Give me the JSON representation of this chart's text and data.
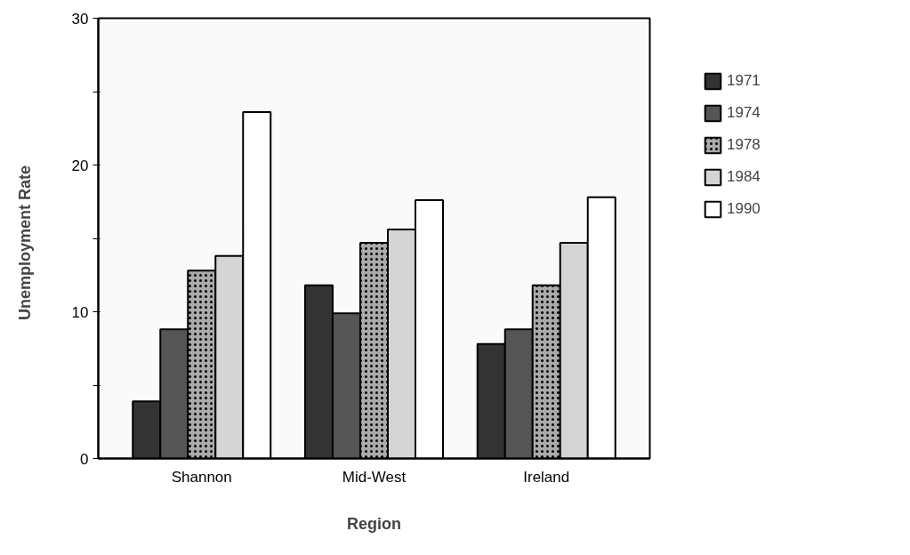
{
  "chart_data": {
    "type": "bar",
    "xlabel": "Region",
    "ylabel": "Unemployment   Rate",
    "categories": [
      "Shannon",
      "Mid-West",
      "Ireland"
    ],
    "series": [
      {
        "name": "1971",
        "color": "#333333",
        "values": [
          3.9,
          11.8,
          7.8
        ]
      },
      {
        "name": "1974",
        "color": "#555555",
        "values": [
          8.8,
          9.9,
          8.8
        ]
      },
      {
        "name": "1978",
        "color": "#aaaaaa",
        "values": [
          12.8,
          14.7,
          11.8
        ]
      },
      {
        "name": "1984",
        "color": "#d4d4d4",
        "values": [
          13.8,
          15.6,
          14.7
        ]
      },
      {
        "name": "1990",
        "color": "#ffffff",
        "values": [
          23.6,
          17.6,
          17.8
        ]
      }
    ],
    "ylim": [
      0,
      30
    ],
    "yticks": [
      0,
      {
        "value": 5,
        "label": null
      },
      10,
      {
        "value": 15,
        "label": null
      },
      20,
      {
        "value": 25,
        "label": null
      },
      30
    ],
    "grid": false,
    "legend": "right"
  }
}
